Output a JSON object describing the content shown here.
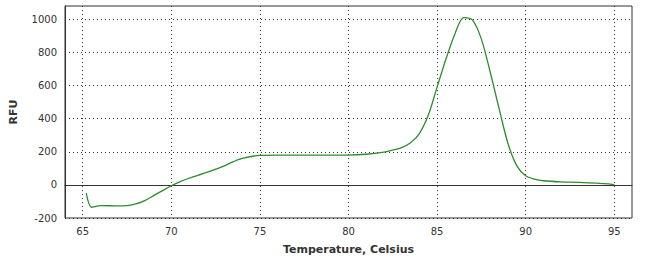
{
  "chart_data": {
    "type": "line",
    "x_label": "Temperature, Celsius",
    "y_label": "RFU",
    "x": [
      65.2,
      65.5,
      66,
      67,
      67.5,
      68,
      68.5,
      69,
      69.5,
      70,
      70.5,
      71,
      72,
      73,
      73.5,
      74,
      75,
      76,
      78,
      80,
      81,
      82,
      82.5,
      83,
      83.5,
      84,
      84.5,
      85,
      85.5,
      86,
      86.5,
      87,
      87.5,
      88,
      88.5,
      89,
      89.5,
      90,
      90.5,
      91,
      92,
      93,
      94,
      95
    ],
    "values": [
      -50,
      -135,
      -125,
      -127,
      -125,
      -115,
      -95,
      -65,
      -35,
      -5,
      20,
      40,
      75,
      115,
      140,
      160,
      178,
      180,
      180,
      180,
      185,
      198,
      210,
      225,
      255,
      310,
      420,
      590,
      760,
      910,
      1010,
      995,
      880,
      680,
      460,
      250,
      115,
      55,
      35,
      25,
      18,
      15,
      10,
      2
    ],
    "color": "#2e8b2e",
    "xlim": [
      64,
      96
    ],
    "xticks": [
      65,
      70,
      75,
      80,
      85,
      90,
      95
    ],
    "ylim": [
      -200,
      1080
    ],
    "yticks": [
      -200,
      0,
      200,
      400,
      600,
      800,
      1000
    ],
    "grid": true
  }
}
